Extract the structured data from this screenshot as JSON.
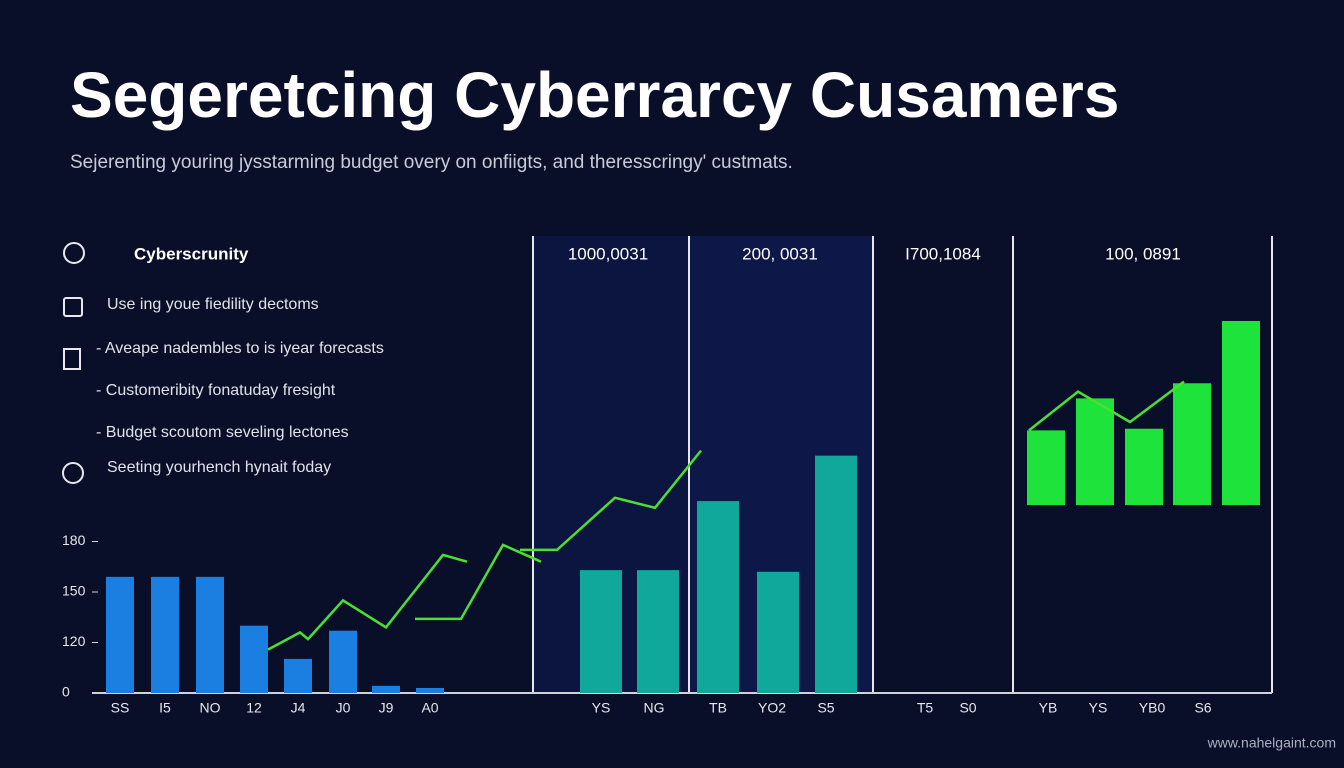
{
  "header": {
    "title": "Segeretcing Cyberrarcy Cusamers",
    "subtitle": "Sejerenting youring jysstarming budget overy on onfiigts, and theresscringy' custmats."
  },
  "sidebar": {
    "heading": "Cyberscrunity",
    "items": [
      "Use ing youe fiedility dectoms",
      "- Aveape nadembles to is iyear forecasts",
      "- Customeribity fonatuday fresight",
      "- Budget scoutom seveling lectones",
      "Seeting yourhench hynait foday"
    ]
  },
  "panels": [
    "1000,0031",
    "200, 0031",
    "I700,1084",
    "100, 0891"
  ],
  "footer": "www.nahelgaint.com",
  "chart_data": {
    "type": "bar",
    "yticks": [
      0,
      120,
      150,
      180
    ],
    "groups": [
      {
        "color": "#1a7fe0",
        "categories": [
          "SS",
          "I5",
          "NO",
          "12",
          "J4",
          "J0",
          "J9",
          "A0"
        ],
        "values": [
          159,
          159,
          159,
          130,
          81,
          127,
          17,
          12
        ]
      },
      {
        "color": "#10a89a",
        "categories": [
          "YS",
          "NG",
          "TB",
          "YO2",
          "S5"
        ],
        "values": [
          163,
          163,
          204,
          162,
          231
        ]
      },
      {
        "color": "#0a0f29",
        "categories": [
          "T5",
          "S0"
        ],
        "values": [
          null,
          null
        ]
      },
      {
        "color": "#1ee33a",
        "categories": [
          "YB",
          "YS",
          "YB0",
          "S6",
          null
        ],
        "values": [
          246,
          265,
          247,
          274,
          311
        ]
      }
    ],
    "line": {
      "color": "#4be02f",
      "values": [
        103,
        126,
        122,
        145,
        129,
        172,
        168,
        null,
        134,
        134,
        178,
        168,
        null,
        175,
        175,
        206,
        200,
        234,
        null,
        246,
        269,
        251,
        275
      ]
    }
  }
}
